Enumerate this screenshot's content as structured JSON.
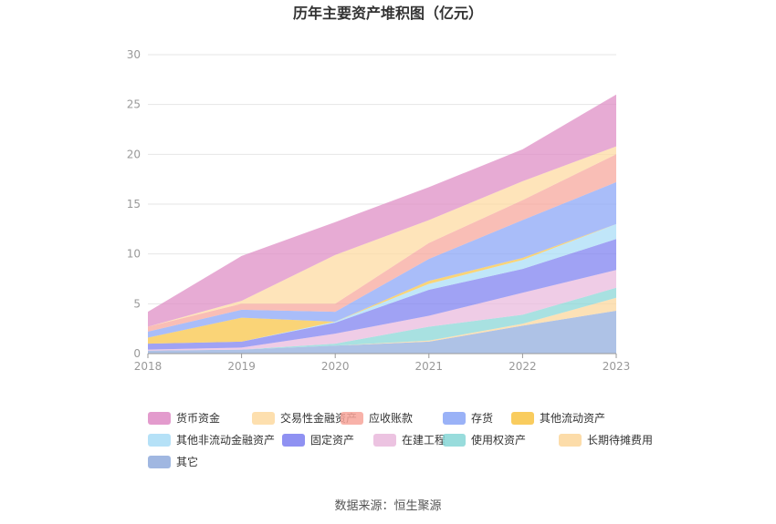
{
  "chart_data": {
    "type": "area",
    "stacked": true,
    "title": "历年主要资产堆积图（亿元）",
    "x": [
      "2018",
      "2019",
      "2020",
      "2021",
      "2022",
      "2023"
    ],
    "ylim": [
      0,
      30
    ],
    "yticks": [
      0,
      5,
      10,
      15,
      20,
      25,
      30
    ],
    "grid": true,
    "legend_position": "bottom",
    "series": [
      {
        "name": "其它",
        "color": "#8faadc",
        "values": [
          0.3,
          0.4,
          0.8,
          1.2,
          2.8,
          4.3
        ]
      },
      {
        "name": "长期待摊费用",
        "color": "#fbd69a",
        "values": [
          0.0,
          0.0,
          0.0,
          0.1,
          0.2,
          1.3
        ]
      },
      {
        "name": "使用权资产",
        "color": "#86d6d6",
        "values": [
          0.0,
          0.0,
          0.2,
          1.4,
          0.9,
          1.0
        ]
      },
      {
        "name": "在建工程",
        "color": "#e9b8dc",
        "values": [
          0.1,
          0.2,
          1.0,
          1.1,
          2.2,
          1.8
        ]
      },
      {
        "name": "固定资产",
        "color": "#7b7ef0",
        "values": [
          0.6,
          0.6,
          1.1,
          2.6,
          2.4,
          3.1
        ]
      },
      {
        "name": "其他非流动金融资产",
        "color": "#a8dcf6",
        "values": [
          0.0,
          0.0,
          0.1,
          0.6,
          0.9,
          1.5
        ]
      },
      {
        "name": "其他流动资产",
        "color": "#f8c342",
        "values": [
          0.6,
          2.4,
          0.0,
          0.3,
          0.2,
          0.0
        ]
      },
      {
        "name": "存货",
        "color": "#88a4f6",
        "values": [
          0.6,
          0.8,
          1.0,
          2.2,
          3.8,
          4.2
        ]
      },
      {
        "name": "应收账款",
        "color": "#f7a59a",
        "values": [
          0.5,
          0.6,
          0.8,
          1.6,
          2.0,
          2.8
        ]
      },
      {
        "name": "交易性金融资产",
        "color": "#fdd9a0",
        "values": [
          0.0,
          0.3,
          4.9,
          2.3,
          1.9,
          0.8
        ]
      },
      {
        "name": "货币资金",
        "color": "#de8ac4",
        "values": [
          1.5,
          4.5,
          3.3,
          3.3,
          3.2,
          5.2
        ]
      }
    ],
    "legend_order": [
      "货币资金",
      "交易性金融资产",
      "应收账款",
      "存货",
      "其他流动资产",
      "其他非流动金融资产",
      "固定资产",
      "在建工程",
      "使用权资产",
      "长期待摊费用",
      "其它"
    ]
  },
  "source": "数据来源：恒生聚源"
}
